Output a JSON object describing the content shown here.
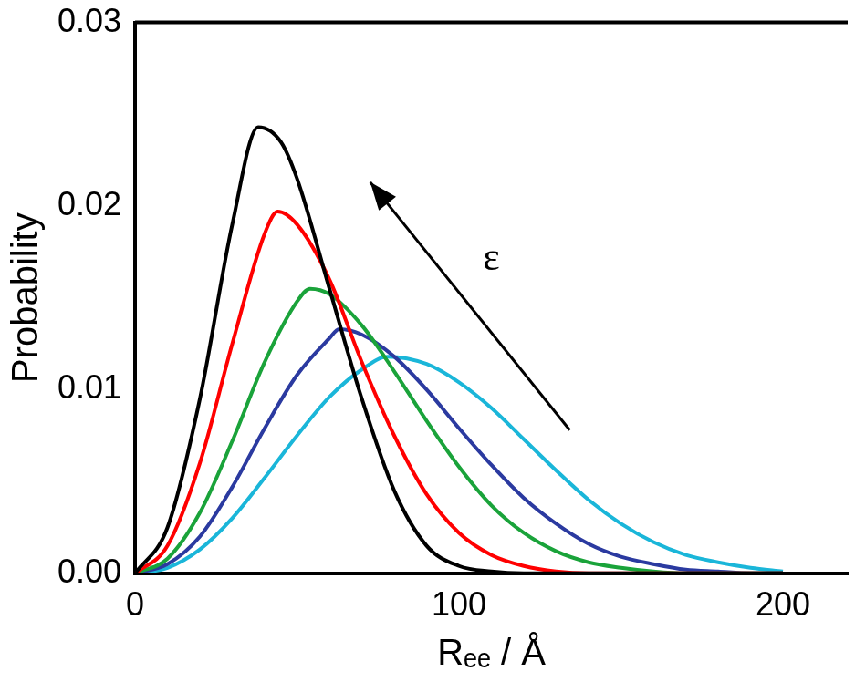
{
  "chart_data": {
    "type": "line",
    "x_label": "Rₑₑ / Å",
    "y_label": "Probability",
    "xlim": [
      0,
      220
    ],
    "xticks": [
      0,
      100,
      200
    ],
    "ylim": [
      0,
      0.03
    ],
    "yticks": [
      {
        "value": 0,
        "label": "0.00"
      },
      {
        "value": 0.01,
        "label": "0.01"
      },
      {
        "value": 0.02,
        "label": "0.02"
      },
      {
        "value": 0.03,
        "label": "0.03"
      }
    ],
    "grid": false,
    "annotations": [
      {
        "text": "ε"
      }
    ],
    "series": [
      {
        "color": "#000000",
        "x": [
          0,
          10,
          20,
          30,
          38,
          45,
          50,
          60,
          70,
          80,
          90,
          100,
          110,
          120,
          200
        ],
        "values": [
          0,
          0.0025,
          0.0095,
          0.019,
          0.0243,
          0.0235,
          0.0215,
          0.0155,
          0.0095,
          0.0045,
          0.0015,
          0.0004,
          0.0001,
          0,
          0
        ]
      },
      {
        "color": "#ff0000",
        "x": [
          0,
          10,
          20,
          30,
          40,
          44,
          50,
          60,
          70,
          80,
          90,
          100,
          110,
          120,
          130,
          140,
          200
        ],
        "values": [
          0,
          0.0015,
          0.006,
          0.0125,
          0.0185,
          0.0197,
          0.019,
          0.016,
          0.0115,
          0.0075,
          0.0043,
          0.0022,
          0.001,
          0.0004,
          0.0001,
          0,
          0
        ]
      },
      {
        "color": "#1aa33a",
        "x": [
          0,
          10,
          20,
          30,
          40,
          50,
          54,
          60,
          70,
          80,
          90,
          100,
          110,
          120,
          130,
          140,
          150,
          160,
          170,
          200
        ],
        "values": [
          0,
          0.0008,
          0.0033,
          0.0072,
          0.0115,
          0.0148,
          0.0155,
          0.0152,
          0.0135,
          0.011,
          0.0083,
          0.0058,
          0.0037,
          0.0022,
          0.0012,
          0.0006,
          0.0003,
          0.0001,
          0,
          0
        ]
      },
      {
        "color": "#2b3aa0",
        "x": [
          0,
          10,
          20,
          30,
          40,
          50,
          60,
          63,
          70,
          80,
          90,
          100,
          110,
          120,
          130,
          140,
          150,
          160,
          170,
          180,
          190,
          200
        ],
        "values": [
          0,
          0.0005,
          0.002,
          0.0047,
          0.0079,
          0.0108,
          0.0128,
          0.0133,
          0.013,
          0.0118,
          0.01,
          0.0079,
          0.0059,
          0.0041,
          0.0027,
          0.0016,
          0.0009,
          0.0005,
          0.0002,
          0.0001,
          0,
          0
        ]
      },
      {
        "color": "#1ab6d9",
        "x": [
          0,
          10,
          20,
          30,
          40,
          50,
          60,
          70,
          78,
          90,
          100,
          110,
          120,
          130,
          140,
          150,
          160,
          170,
          180,
          190,
          200
        ],
        "values": [
          0,
          0.0003,
          0.0013,
          0.003,
          0.0052,
          0.0075,
          0.0096,
          0.0111,
          0.0118,
          0.0114,
          0.0104,
          0.009,
          0.0073,
          0.0056,
          0.004,
          0.0027,
          0.0017,
          0.001,
          0.0006,
          0.0003,
          0.0001
        ]
      }
    ]
  }
}
